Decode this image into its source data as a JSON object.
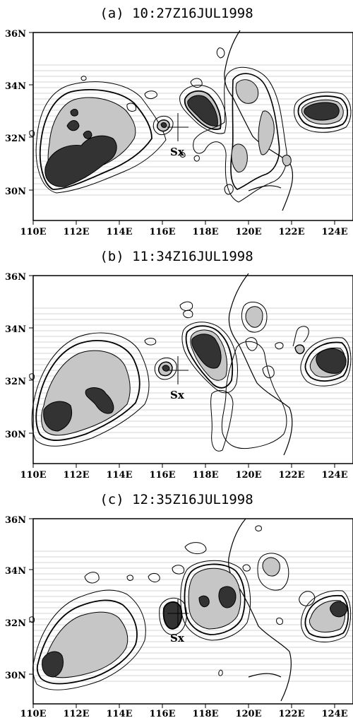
{
  "lat_ticks": [
    "36N",
    "34N",
    "32N",
    "30N"
  ],
  "lon_ticks": [
    "110E",
    "112E",
    "114E",
    "116E",
    "118E",
    "120E",
    "122E",
    "124E"
  ],
  "site_label": "Sx",
  "colors": {
    "light_cloud": "#c6c6c6",
    "dark_cloud": "#333333",
    "contour": "#000000",
    "lines": "#d4d4d4"
  },
  "panels": [
    {
      "title": "(a)  10:27Z16JUL1998"
    },
    {
      "title": "(b)  11:34Z16JUL1998"
    },
    {
      "title": "(c)  12:35Z16JUL1998"
    }
  ]
}
